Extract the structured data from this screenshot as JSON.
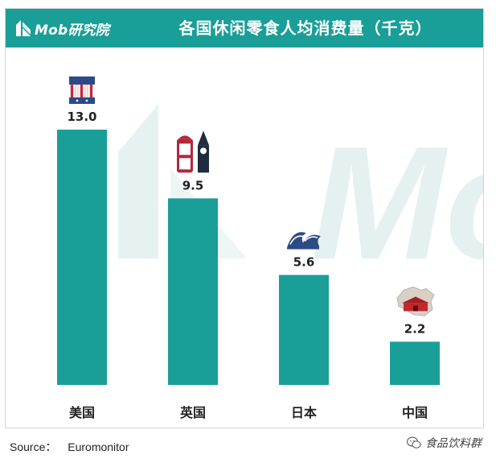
{
  "header": {
    "brand_name": "Mob研究院",
    "title": "各国休闲零食人均消费量（千克）",
    "background_color": "#1a9e98"
  },
  "watermark": {
    "text": "Mo"
  },
  "chart_data": {
    "type": "bar",
    "title": "各国休闲零食人均消费量（千克）",
    "categories": [
      "美国",
      "英国",
      "日本",
      "中国"
    ],
    "values": [
      13.0,
      9.5,
      5.6,
      2.2
    ],
    "value_labels": [
      "13.0",
      "9.5",
      "5.6",
      "2.2"
    ],
    "xlabel": "",
    "ylabel": "",
    "ylim": [
      0,
      13.0
    ],
    "grid": false,
    "legend": "none",
    "bar_color": "#1a9e98",
    "category_icons": [
      "us-flag-icon",
      "london-landmarks-icon",
      "great-wave-icon",
      "china-map-icon"
    ]
  },
  "footer": {
    "source_label": "Source：",
    "source_value": "Euromonitor",
    "account_name": "食品饮料群"
  }
}
